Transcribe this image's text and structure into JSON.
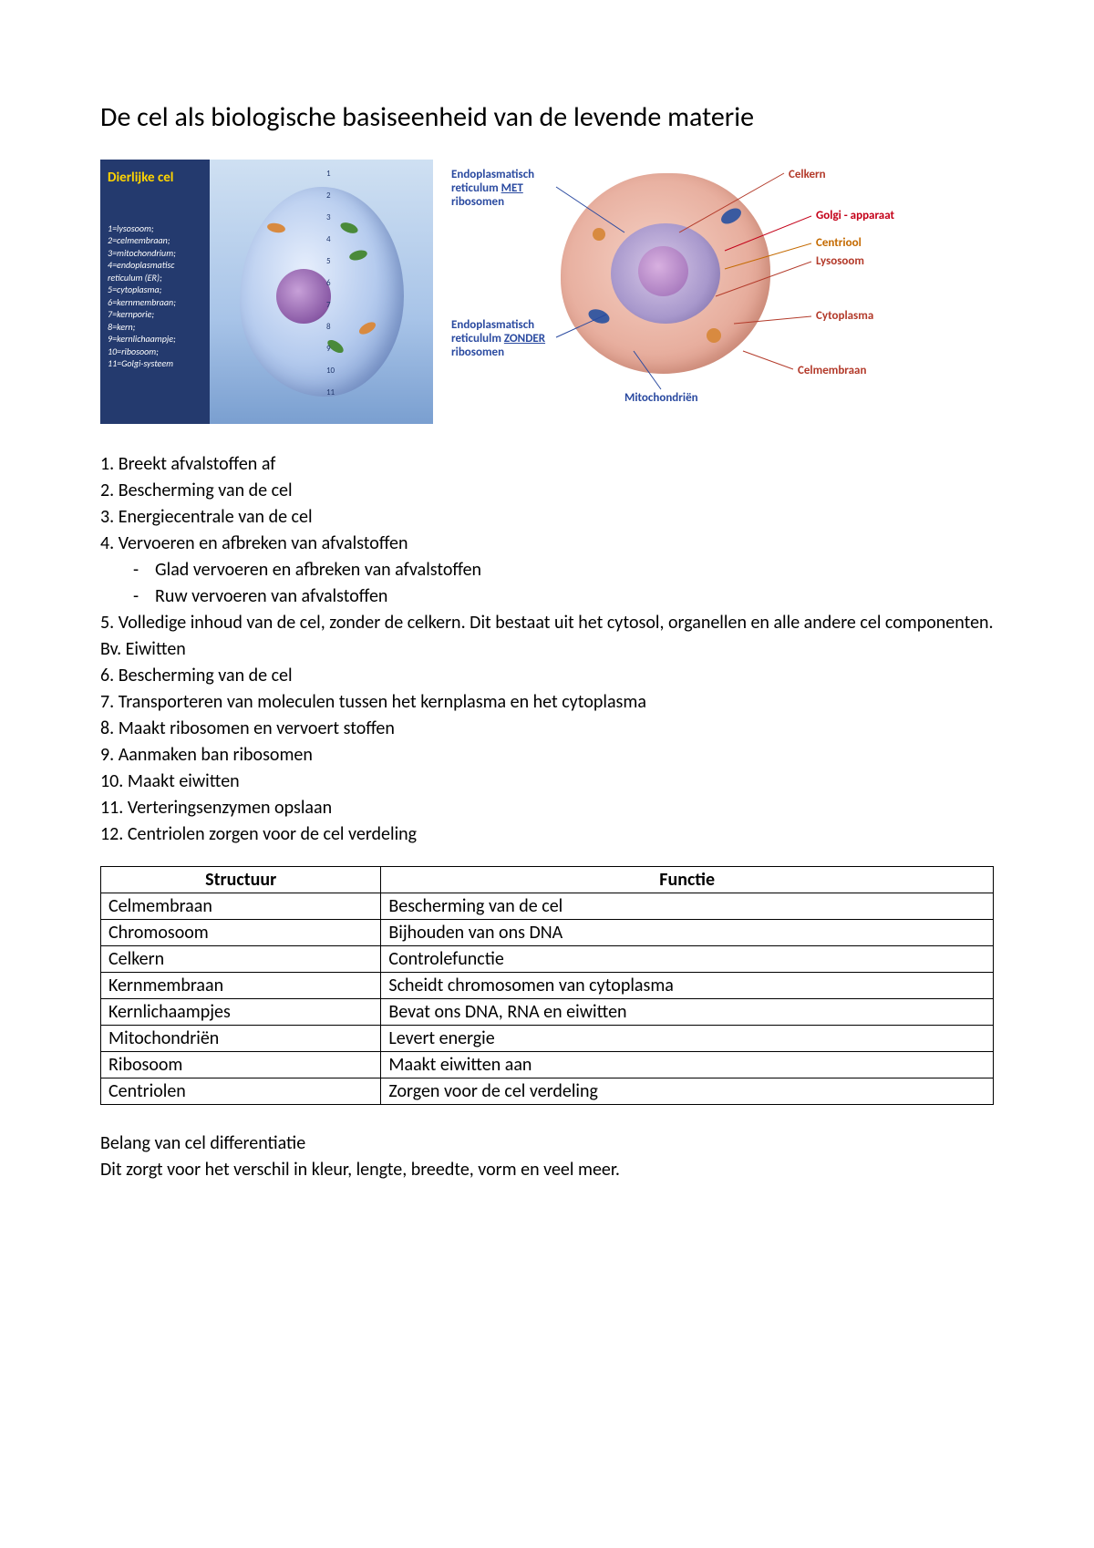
{
  "title": "De cel als biologische basiseenheid van de levende materie",
  "left_diagram": {
    "panel_title": "Dierlijke cel",
    "panel_bg": "#243a6e",
    "panel_title_color": "#ffd400",
    "legend": [
      "1=lysosoom;",
      "2=celmembraan;",
      "3=mitochondrium;",
      "4=endoplasmatisc",
      "reticulum (ER);",
      "5=cytoplasma;",
      "6=kernmembraan;",
      "7=kernporie;",
      "8=kern;",
      "9=kernlichaampje;",
      "10=ribosoom;",
      "11=Golgi-systeem"
    ],
    "numbers": [
      "1",
      "2",
      "3",
      "4",
      "5",
      "6",
      "7",
      "8",
      "9",
      "10",
      "11"
    ]
  },
  "right_diagram": {
    "labels": {
      "er_met_pre": "Endoplasmatisch reticulum ",
      "er_met_u": "MET",
      "er_met_post": " ribosomen",
      "er_zonder_pre": "Endoplasmatisch reticululm ",
      "er_zonder_u": "ZONDER",
      "er_zonder_post": " ribosomen",
      "celkern": "Celkern",
      "golgi": "Golgi - apparaat",
      "centriool": "Centriool",
      "lysosoom": "Lysosoom",
      "cytoplasma": "Cytoplasma",
      "celmembraan": "Celmembraan",
      "mitochondrien": "Mitochondriën"
    },
    "colors": {
      "celkern": "#b33a2a",
      "golgi": "#c40018",
      "centriool": "#c46a00",
      "lysosoom": "#b33a2a",
      "cytoplasma": "#b33a2a",
      "celmembraan": "#b33a2a",
      "mito": "#2a4aa0",
      "er": "#2a4aa0"
    }
  },
  "functions_list": [
    {
      "n": "1",
      "text": "Breekt afvalstoffen af"
    },
    {
      "n": "2",
      "text": "Bescherming van de cel"
    },
    {
      "n": "3",
      "text": "Energiecentrale van de cel"
    },
    {
      "n": "4",
      "text": "Vervoeren en afbreken van afvalstoffen",
      "subs": [
        "Glad vervoeren en afbreken van afvalstoffen",
        "Ruw vervoeren van afvalstoffen"
      ]
    },
    {
      "n": "5",
      "text": "Volledige inhoud van de cel, zonder de celkern. Dit bestaat uit het cytosol, organellen en alle andere cel componenten. Bv. Eiwitten"
    },
    {
      "n": "6",
      "text": "Bescherming van de cel"
    },
    {
      "n": "7",
      "text": "Transporteren van moleculen tussen het kernplasma en het cytoplasma"
    },
    {
      "n": "8",
      "text": "Maakt ribosomen en vervoert stoffen"
    },
    {
      "n": "9",
      "text": "Aanmaken ban ribosomen"
    },
    {
      "n": "10",
      "text": "Maakt eiwitten"
    },
    {
      "n": "11",
      "text": "Verteringsenzymen opslaan"
    },
    {
      "n": "12",
      "text": "Centriolen zorgen voor de cel verdeling"
    }
  ],
  "table": {
    "headers": [
      "Structuur",
      "Functie"
    ],
    "rows": [
      [
        "Celmembraan",
        "Bescherming van de cel"
      ],
      [
        "Chromosoom",
        "Bijhouden van ons DNA"
      ],
      [
        "Celkern",
        "Controlefunctie"
      ],
      [
        "Kernmembraan",
        "Scheidt chromosomen van cytoplasma"
      ],
      [
        "Kernlichaampjes",
        "Bevat ons DNA, RNA en eiwitten"
      ],
      [
        "Mitochondriën",
        "Levert energie"
      ],
      [
        "Ribosoom",
        "Maakt eiwitten aan"
      ],
      [
        "Centriolen",
        "Zorgen voor de cel verdeling"
      ]
    ]
  },
  "footer": {
    "line1": "Belang van cel differentiatie",
    "line2": "Dit zorgt voor het verschil in kleur, lengte, breedte, vorm en veel meer."
  }
}
